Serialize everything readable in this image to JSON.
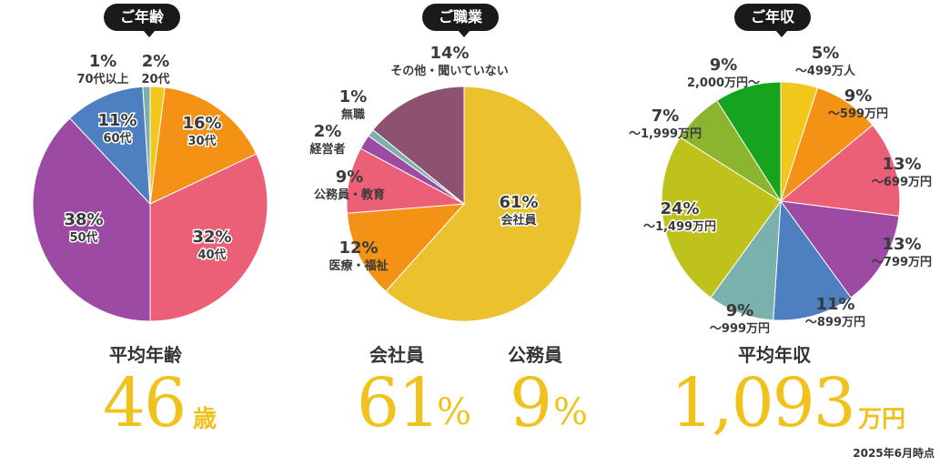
{
  "chart_data": [
    {
      "type": "pie",
      "title": "ご年齢",
      "slices": [
        {
          "label": "20代",
          "value": 2,
          "pct": "2%",
          "color": "#f2c71c"
        },
        {
          "label": "30代",
          "value": 16,
          "pct": "16%",
          "color": "#f39215"
        },
        {
          "label": "40代",
          "value": 32,
          "pct": "32%",
          "color": "#eb6077"
        },
        {
          "label": "50代",
          "value": 38,
          "pct": "38%",
          "color": "#9c4aa3"
        },
        {
          "label": "60代",
          "value": 11,
          "pct": "11%",
          "color": "#4d7fc1"
        },
        {
          "label": "70代以上",
          "value": 1,
          "pct": "1%",
          "color": "#7bb1ad"
        }
      ],
      "stat": {
        "label": "平均年齢",
        "value": "46",
        "unit": "歳"
      }
    },
    {
      "type": "pie",
      "title": "ご職業",
      "slices": [
        {
          "label": "会社員",
          "value": 61,
          "pct": "61%",
          "color": "#ebc22e"
        },
        {
          "label": "医療・福祉",
          "value": 12,
          "pct": "12%",
          "color": "#f39215"
        },
        {
          "label": "公務員・教育",
          "value": 9,
          "pct": "9%",
          "color": "#eb6077"
        },
        {
          "label": "経営者",
          "value": 2,
          "pct": "2%",
          "color": "#9c4aa3"
        },
        {
          "label": "無職",
          "value": 1,
          "pct": "1%",
          "color": "#7bb1ad"
        },
        {
          "label": "その他・聞いていない",
          "value": 14,
          "pct": "14%",
          "color": "#8c5270"
        }
      ],
      "stats": [
        {
          "label": "会社員",
          "value": "61",
          "unit": "%"
        },
        {
          "label": "公務員",
          "value": "9",
          "unit": "%"
        }
      ]
    },
    {
      "type": "pie",
      "title": "ご年収",
      "slices": [
        {
          "label": "〜499万人",
          "value": 5,
          "pct": "5%",
          "color": "#f2c71c"
        },
        {
          "label": "〜599万円",
          "value": 9,
          "pct": "9%",
          "color": "#f39215"
        },
        {
          "label": "〜699万円",
          "value": 13,
          "pct": "13%",
          "color": "#eb6077"
        },
        {
          "label": "〜799万円",
          "value": 13,
          "pct": "13%",
          "color": "#9c4aa3"
        },
        {
          "label": "〜899万円",
          "value": 11,
          "pct": "11%",
          "color": "#4d7fc1"
        },
        {
          "label": "〜999万円",
          "value": 9,
          "pct": "9%",
          "color": "#7bb1ad"
        },
        {
          "label": "〜1,499万円",
          "value": 24,
          "pct": "24%",
          "color": "#bfc21b"
        },
        {
          "label": "〜1,999万円",
          "value": 7,
          "pct": "7%",
          "color": "#8cb52f"
        },
        {
          "label": "2,000万円〜",
          "value": 9,
          "pct": "9%",
          "color": "#16a31d"
        }
      ],
      "stat": {
        "label": "平均年収",
        "value": "1,093",
        "unit": "万円"
      }
    }
  ],
  "footnote": "2025年6月時点"
}
